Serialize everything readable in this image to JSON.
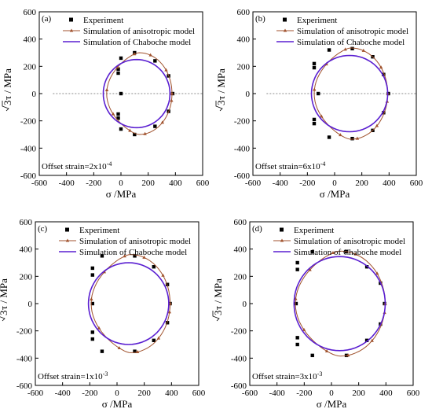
{
  "chart_data": [
    {
      "type": "scatter",
      "panel_label": "(a)",
      "annotation": "Offset strain=2x10",
      "annotation_exp": "-4",
      "xlabel": "σ /MPa",
      "ylabel_radical": "3",
      "ylabel_rest": "τ / MPa",
      "xlim": [
        -600,
        600
      ],
      "ylim": [
        -600,
        600
      ],
      "xticks": [
        -600,
        -400,
        -200,
        0,
        200,
        400,
        600
      ],
      "yticks": [
        -600,
        -400,
        -200,
        0,
        200,
        400,
        600
      ],
      "zero_line": true,
      "legend_position": "top",
      "series": [
        {
          "name": "Experiment",
          "kind": "points",
          "color": "#000000",
          "marker": "square",
          "points": [
            [
              -20,
              150
            ],
            [
              -20,
              -150
            ],
            [
              -20,
              180
            ],
            [
              -20,
              -180
            ],
            [
              0,
              0
            ],
            [
              0,
              260
            ],
            [
              0,
              -260
            ],
            [
              100,
              300
            ],
            [
              100,
              -300
            ],
            [
              250,
              240
            ],
            [
              250,
              -240
            ],
            [
              350,
              130
            ],
            [
              350,
              -130
            ],
            [
              380,
              0
            ]
          ]
        },
        {
          "name": "Simulation of anisotropic model",
          "kind": "curve",
          "color": "#a0522d",
          "marker": "triangle",
          "center": [
            135,
            0
          ],
          "rx": 240,
          "ry": 300,
          "left_flatten": 0.55,
          "markers_every": 7
        },
        {
          "name": "Simulation of Chaboche model",
          "kind": "curve",
          "color": "#5a1fd1",
          "center": [
            115,
            0
          ],
          "rx": 245,
          "ry": 250,
          "left_flatten": 0
        }
      ]
    },
    {
      "type": "scatter",
      "panel_label": "(b)",
      "annotation": "Offset strain=6x10",
      "annotation_exp": "-4",
      "xlabel": "σ /MPa",
      "ylabel_radical": "3",
      "ylabel_rest": "τ / MPa",
      "xlim": [
        -600,
        600
      ],
      "ylim": [
        -600,
        600
      ],
      "xticks": [
        -600,
        -400,
        -200,
        0,
        200,
        400,
        600
      ],
      "yticks": [
        -600,
        -400,
        -200,
        0,
        200,
        400,
        600
      ],
      "zero_line": true,
      "legend_position": "top",
      "series": [
        {
          "name": "Experiment",
          "kind": "points",
          "color": "#000000",
          "marker": "square",
          "points": [
            [
              -40,
              320
            ],
            [
              -40,
              -320
            ],
            [
              -150,
              220
            ],
            [
              -150,
              -220
            ],
            [
              -150,
              190
            ],
            [
              -150,
              -190
            ],
            [
              -120,
              0
            ],
            [
              130,
              330
            ],
            [
              130,
              -330
            ],
            [
              280,
              270
            ],
            [
              280,
              -270
            ],
            [
              360,
              140
            ],
            [
              360,
              -140
            ],
            [
              395,
              0
            ]
          ]
        },
        {
          "name": "Simulation of anisotropic model",
          "kind": "curve",
          "color": "#a0522d",
          "marker": "triangle",
          "center": [
            120,
            0
          ],
          "rx": 270,
          "ry": 335,
          "left_flatten": 0.55,
          "markers_every": 7
        },
        {
          "name": "Simulation of Chaboche model",
          "kind": "curve",
          "color": "#5a1fd1",
          "center": [
            110,
            0
          ],
          "rx": 280,
          "ry": 280,
          "left_flatten": 0
        }
      ]
    },
    {
      "type": "scatter",
      "panel_label": "(c)",
      "annotation": "Offset strain=1x10",
      "annotation_exp": "-3",
      "xlabel": "σ /MPa",
      "ylabel_radical": "3",
      "ylabel_rest": "τ / MPa",
      "xlim": [
        -600,
        600
      ],
      "ylim": [
        -600,
        600
      ],
      "xticks": [
        -600,
        -400,
        -200,
        0,
        200,
        400,
        600
      ],
      "yticks": [
        -600,
        -400,
        -200,
        0,
        200,
        400,
        600
      ],
      "zero_line": false,
      "legend_position": "top",
      "series": [
        {
          "name": "Experiment",
          "kind": "points",
          "color": "#000000",
          "marker": "square",
          "points": [
            [
              -110,
              350
            ],
            [
              -110,
              -350
            ],
            [
              -180,
              260
            ],
            [
              -180,
              -260
            ],
            [
              -180,
              210
            ],
            [
              -180,
              -210
            ],
            [
              -180,
              0
            ],
            [
              130,
              350
            ],
            [
              130,
              -350
            ],
            [
              270,
              270
            ],
            [
              270,
              -270
            ],
            [
              370,
              140
            ],
            [
              370,
              -140
            ],
            [
              390,
              0
            ]
          ]
        },
        {
          "name": "Simulation of anisotropic model",
          "kind": "curve",
          "color": "#a0522d",
          "marker": "triangle",
          "center": [
            100,
            0
          ],
          "rx": 290,
          "ry": 360,
          "left_flatten": 0.55,
          "markers_every": 7
        },
        {
          "name": "Simulation of Chaboche model",
          "kind": "curve",
          "color": "#5a1fd1",
          "center": [
            85,
            0
          ],
          "rx": 295,
          "ry": 300,
          "left_flatten": 0
        }
      ]
    },
    {
      "type": "scatter",
      "panel_label": "(d)",
      "annotation": "Offset strain=3x10",
      "annotation_exp": "-3",
      "xlabel": "σ /MPa",
      "ylabel_radical": "3",
      "ylabel_rest": "τ / MPa",
      "xlim": [
        -600,
        600
      ],
      "ylim": [
        -600,
        600
      ],
      "xticks": [
        -600,
        -400,
        -200,
        0,
        200,
        400,
        600
      ],
      "yticks": [
        -600,
        -400,
        -200,
        0,
        200,
        400,
        600
      ],
      "zero_line": false,
      "legend_position": "top",
      "series": [
        {
          "name": "Experiment",
          "kind": "points",
          "color": "#000000",
          "marker": "square",
          "points": [
            [
              -140,
              380
            ],
            [
              -140,
              -380
            ],
            [
              -250,
              300
            ],
            [
              -250,
              -300
            ],
            [
              -250,
              250
            ],
            [
              -250,
              -250
            ],
            [
              -260,
              0
            ],
            [
              110,
              380
            ],
            [
              110,
              -380
            ],
            [
              260,
              270
            ],
            [
              260,
              -270
            ],
            [
              360,
              150
            ],
            [
              360,
              -150
            ],
            [
              390,
              0
            ]
          ]
        },
        {
          "name": "Simulation of anisotropic model",
          "kind": "curve",
          "color": "#a0522d",
          "marker": "triangle",
          "center": [
            65,
            0
          ],
          "rx": 330,
          "ry": 385,
          "left_flatten": 0.5,
          "markers_every": 7
        },
        {
          "name": "Simulation of Chaboche model",
          "kind": "curve",
          "color": "#5a1fd1",
          "center": [
            60,
            0
          ],
          "rx": 335,
          "ry": 345,
          "left_flatten": 0
        }
      ]
    }
  ]
}
